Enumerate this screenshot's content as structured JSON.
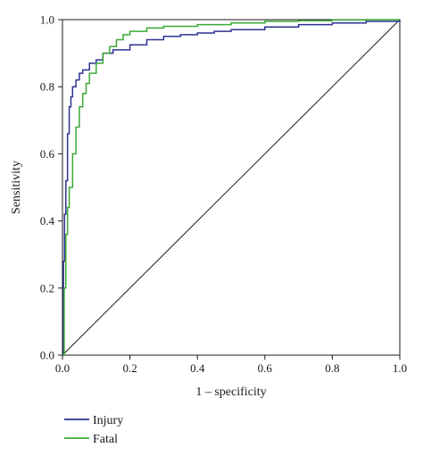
{
  "chart_data": {
    "type": "line",
    "title": "",
    "xlabel": "1 – specificity",
    "ylabel": "Sensitivity",
    "xlim": [
      0,
      1
    ],
    "ylim": [
      0,
      1
    ],
    "x_ticks": [
      "0.0",
      "0.2",
      "0.4",
      "0.6",
      "0.8",
      "1.0"
    ],
    "y_ticks": [
      "0.0",
      "0.2",
      "0.4",
      "0.6",
      "0.8",
      "1.0"
    ],
    "grid": false,
    "legend_position": "bottom-left",
    "reference_line": {
      "x": [
        0,
        1
      ],
      "y": [
        0,
        1
      ],
      "color": "#1a1a1a"
    },
    "series": [
      {
        "name": "Injury",
        "color": "#2e3192",
        "x": [
          0,
          0.003,
          0.006,
          0.01,
          0.015,
          0.02,
          0.025,
          0.03,
          0.04,
          0.05,
          0.06,
          0.08,
          0.1,
          0.12,
          0.15,
          0.2,
          0.25,
          0.3,
          0.35,
          0.4,
          0.45,
          0.5,
          0.6,
          0.7,
          0.8,
          0.9,
          1.0
        ],
        "y": [
          0,
          0.28,
          0.42,
          0.52,
          0.66,
          0.74,
          0.77,
          0.8,
          0.82,
          0.84,
          0.85,
          0.87,
          0.88,
          0.9,
          0.91,
          0.925,
          0.94,
          0.95,
          0.955,
          0.96,
          0.965,
          0.97,
          0.978,
          0.985,
          0.99,
          0.995,
          1.0
        ]
      },
      {
        "name": "Fatal",
        "color": "#3aa935",
        "x": [
          0,
          0.005,
          0.01,
          0.015,
          0.02,
          0.03,
          0.04,
          0.05,
          0.06,
          0.07,
          0.08,
          0.1,
          0.12,
          0.14,
          0.16,
          0.18,
          0.2,
          0.25,
          0.3,
          0.4,
          0.5,
          0.6,
          0.7,
          0.8,
          0.9,
          1.0
        ],
        "y": [
          0,
          0.2,
          0.36,
          0.44,
          0.5,
          0.6,
          0.68,
          0.74,
          0.78,
          0.81,
          0.84,
          0.87,
          0.9,
          0.92,
          0.94,
          0.955,
          0.965,
          0.975,
          0.98,
          0.985,
          0.99,
          0.995,
          0.997,
          0.999,
          1.0,
          1.0
        ]
      }
    ]
  }
}
